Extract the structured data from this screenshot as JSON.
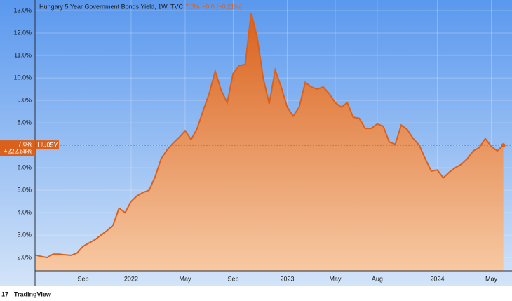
{
  "chart_data": {
    "type": "area",
    "title": "Hungary 5 Year Government Bonds Yield, 1W, TVC",
    "header_price": "7.0%",
    "header_change": "−0.0 (−0.21%)",
    "symbol": "HU05Y",
    "last_value_label": "7.0%",
    "change_label": "+222.58%",
    "brand": "TradingView",
    "color": "#d9611c",
    "categories": [
      null,
      null,
      null,
      null,
      null,
      null,
      null,
      null,
      "Sep",
      null,
      null,
      null,
      null,
      null,
      null,
      null,
      "2022",
      null,
      null,
      null,
      null,
      null,
      null,
      null,
      null,
      "May",
      null,
      null,
      null,
      null,
      null,
      null,
      null,
      "Sep",
      null,
      null,
      null,
      null,
      null,
      null,
      null,
      null,
      "2023",
      null,
      null,
      null,
      null,
      null,
      null,
      null,
      "May",
      null,
      null,
      null,
      null,
      null,
      null,
      "Aug",
      null,
      null,
      null,
      null,
      null,
      null,
      null,
      null,
      null,
      "2024",
      null,
      null,
      null,
      null,
      null,
      null,
      null,
      null,
      "May",
      null,
      null
    ],
    "values": [
      2.12,
      2.05,
      2.0,
      2.15,
      2.15,
      2.12,
      2.1,
      2.2,
      2.5,
      2.65,
      2.8,
      3.0,
      3.2,
      3.45,
      4.2,
      4.0,
      4.5,
      4.75,
      4.9,
      5.0,
      5.6,
      6.4,
      6.8,
      7.1,
      7.35,
      7.65,
      7.25,
      7.75,
      8.55,
      9.3,
      10.3,
      9.45,
      8.9,
      10.2,
      10.55,
      10.6,
      12.9,
      11.8,
      10.0,
      8.85,
      10.35,
      9.6,
      8.7,
      8.3,
      8.7,
      9.8,
      9.6,
      9.5,
      9.6,
      9.3,
      8.9,
      8.7,
      8.9,
      8.25,
      8.2,
      7.75,
      7.75,
      7.95,
      7.85,
      7.15,
      7.05,
      7.9,
      7.7,
      7.3,
      7.0,
      6.4,
      5.85,
      5.9,
      5.55,
      5.8,
      6.0,
      6.15,
      6.4,
      6.75,
      6.9,
      7.3,
      6.95,
      6.75,
      7.0
    ],
    "ylim": [
      1.41,
      13.47
    ],
    "yticks": [
      {
        "value": 2,
        "label": "2.0%"
      },
      {
        "value": 3,
        "label": "3.0%"
      },
      {
        "value": 4,
        "label": "4.0%"
      },
      {
        "value": 5,
        "label": "5.0%"
      },
      {
        "value": 6,
        "label": "6.0%"
      },
      {
        "value": 7,
        "label": "7.0%"
      },
      {
        "value": 8,
        "label": "8.0%"
      },
      {
        "value": 9,
        "label": "9.0%"
      },
      {
        "value": 10,
        "label": "10.0%"
      },
      {
        "value": 11,
        "label": "11.0%"
      },
      {
        "value": 12,
        "label": "12.0%"
      },
      {
        "value": 13,
        "label": "13.0%"
      }
    ],
    "grid": true
  }
}
